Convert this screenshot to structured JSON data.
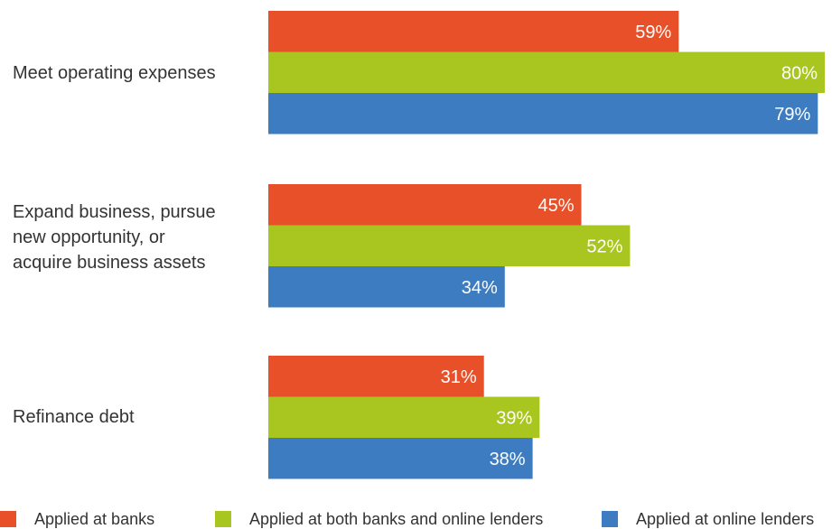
{
  "chart_data": {
    "type": "bar",
    "orientation": "horizontal",
    "categories": [
      "Meet operating expenses",
      "Expand business, pursue new opportunity, or acquire business assets",
      "Refinance debt"
    ],
    "category_lines": [
      [
        "Meet operating expenses"
      ],
      [
        "Expand business, pursue",
        "new opportunity, or",
        "acquire business assets"
      ],
      [
        "Refinance debt"
      ]
    ],
    "series": [
      {
        "name": "Applied at banks",
        "color": "#e8502a",
        "values": [
          59,
          45,
          31
        ],
        "labels": [
          "59%",
          "45%",
          "31%"
        ]
      },
      {
        "name": "Applied at both banks and online lenders",
        "color": "#a8c520",
        "values": [
          80,
          52,
          39
        ],
        "labels": [
          "80%",
          "52%",
          "39%"
        ]
      },
      {
        "name": "Applied at online lenders",
        "color": "#3d7cc0",
        "values": [
          79,
          34,
          38
        ],
        "labels": [
          "79%",
          "34%",
          "38%"
        ]
      }
    ],
    "xlim": [
      0,
      80
    ],
    "unit": "%",
    "grid": false,
    "legend_position": "bottom"
  }
}
